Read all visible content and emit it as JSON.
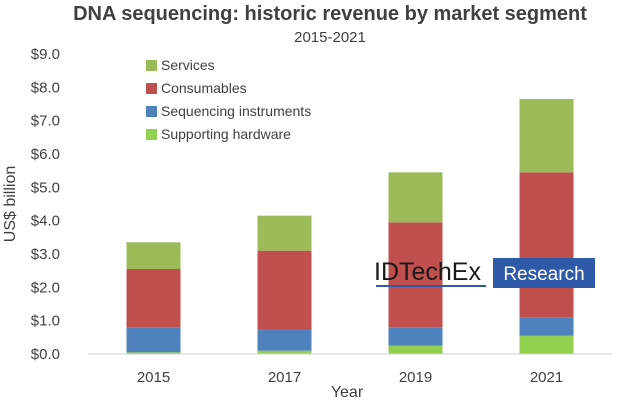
{
  "chart_data": {
    "type": "bar",
    "stacked": true,
    "title": "DNA sequencing: historic revenue by market segment",
    "subtitle": "2015-2021",
    "xlabel": "Year",
    "ylabel": "US$ billion",
    "categories": [
      "2015",
      "2017",
      "2019",
      "2021"
    ],
    "ylim": [
      0,
      9
    ],
    "yticks": [
      "$0.0",
      "$1.0",
      "$2.0",
      "$3.0",
      "$4.0",
      "$5.0",
      "$6.0",
      "$7.0",
      "$8.0",
      "$9.0"
    ],
    "grid": false,
    "legend_position": "top-left",
    "series": [
      {
        "name": "Supporting hardware",
        "color": "#92d050",
        "values": [
          0.05,
          0.1,
          0.25,
          0.55
        ]
      },
      {
        "name": "Sequencing instruments",
        "color": "#4f81bd",
        "values": [
          0.75,
          0.65,
          0.55,
          0.55
        ]
      },
      {
        "name": "Consumables",
        "color": "#c0504d",
        "values": [
          1.75,
          2.35,
          3.15,
          4.35
        ]
      },
      {
        "name": "Services",
        "color": "#9bbb59",
        "values": [
          0.8,
          1.05,
          1.5,
          2.2
        ]
      }
    ],
    "legend_order": [
      "Services",
      "Consumables",
      "Sequencing instruments",
      "Supporting hardware"
    ]
  },
  "watermark": {
    "brand": "IDTechEx",
    "product": "Research",
    "color": "#2e5aa8"
  }
}
